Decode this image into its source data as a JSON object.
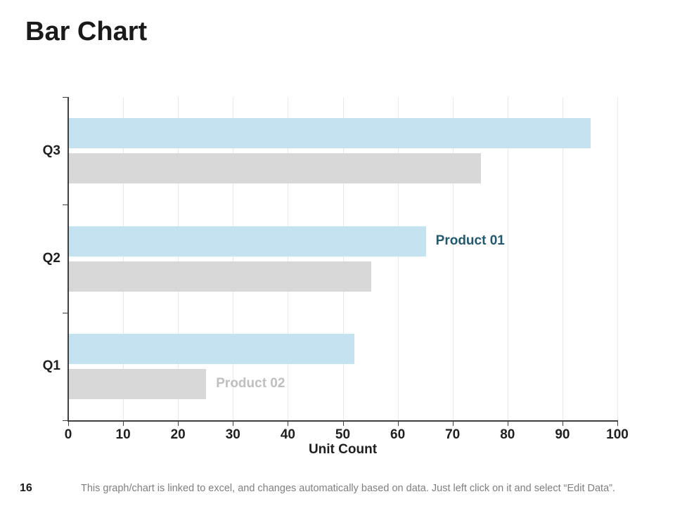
{
  "page": {
    "title": "Bar Chart",
    "page_number": "16",
    "footer_note": "This graph/chart is linked to excel, and changes automatically based on data. Just left click on it and select “Edit Data”."
  },
  "chart_data": {
    "type": "bar",
    "orientation": "horizontal",
    "title": "",
    "xlabel": "Unit Count",
    "ylabel": "",
    "xlim": [
      0,
      100
    ],
    "xticks": [
      0,
      10,
      20,
      30,
      40,
      50,
      60,
      70,
      80,
      90,
      100
    ],
    "grid": true,
    "categories": [
      "Q3",
      "Q2",
      "Q1"
    ],
    "series": [
      {
        "name": "Product 01",
        "color": "#c4e2ef",
        "values": [
          95,
          65,
          52
        ]
      },
      {
        "name": "Product 02",
        "color": "#d8d8d8",
        "values": [
          75,
          55,
          25
        ]
      }
    ],
    "series_labels": [
      {
        "text": "Product 01",
        "series_index": 0,
        "category_index": 1,
        "color": "#24596d"
      },
      {
        "text": "Product 02",
        "series_index": 1,
        "category_index": 2,
        "color": "#bfbfbf"
      }
    ],
    "colors": {
      "axis": "#3f3f3f",
      "gridline": "#e9e9e9",
      "tick_text": "#1f1f1f"
    }
  }
}
